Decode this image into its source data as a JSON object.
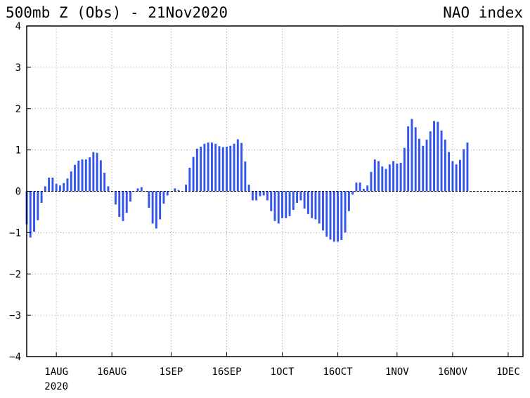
{
  "chart_data": {
    "type": "bar",
    "title": "500mb Z (Obs) - 21Nov2020",
    "subtitle": "NAO index",
    "ylim": [
      -4,
      4
    ],
    "yticks": [
      "4",
      "3",
      "2",
      "1",
      "0",
      "-1",
      "-2",
      "-3",
      "-4"
    ],
    "xlim": [
      "2020-07-24",
      "2020-12-05"
    ],
    "xticks": [
      {
        "date": "2020-08-01",
        "label": "1AUG",
        "sublabel": "2020"
      },
      {
        "date": "2020-08-16",
        "label": "16AUG"
      },
      {
        "date": "2020-09-01",
        "label": "1SEP"
      },
      {
        "date": "2020-09-16",
        "label": "16SEP"
      },
      {
        "date": "2020-10-01",
        "label": "1OCT"
      },
      {
        "date": "2020-10-16",
        "label": "16OCT"
      },
      {
        "date": "2020-11-01",
        "label": "1NOV"
      },
      {
        "date": "2020-11-16",
        "label": "16NOV"
      },
      {
        "date": "2020-12-01",
        "label": "1DEC"
      }
    ],
    "grid": true,
    "bar_color": "#3355ee",
    "x_start": "2020-07-24",
    "values": [
      -0.8,
      -1.12,
      -0.98,
      -0.7,
      -0.28,
      0.12,
      0.33,
      0.33,
      0.18,
      0.14,
      0.2,
      0.31,
      0.48,
      0.64,
      0.74,
      0.77,
      0.77,
      0.82,
      0.95,
      0.93,
      0.75,
      0.45,
      0.12,
      0.0,
      -0.32,
      -0.62,
      -0.72,
      -0.52,
      -0.25,
      0.0,
      0.07,
      0.1,
      0.0,
      -0.4,
      -0.78,
      -0.9,
      -0.68,
      -0.3,
      -0.1,
      0.0,
      0.07,
      0.03,
      0.0,
      0.16,
      0.57,
      0.83,
      1.03,
      1.08,
      1.15,
      1.18,
      1.18,
      1.15,
      1.09,
      1.07,
      1.08,
      1.1,
      1.15,
      1.26,
      1.17,
      0.72,
      0.16,
      -0.22,
      -0.22,
      -0.12,
      -0.1,
      -0.22,
      -0.48,
      -0.72,
      -0.78,
      -0.65,
      -0.65,
      -0.6,
      -0.45,
      -0.28,
      -0.22,
      -0.42,
      -0.55,
      -0.65,
      -0.68,
      -0.78,
      -0.95,
      -1.1,
      -1.17,
      -1.22,
      -1.22,
      -1.18,
      -1.0,
      -0.48,
      -0.08,
      0.21,
      0.21,
      0.06,
      0.14,
      0.47,
      0.77,
      0.73,
      0.6,
      0.54,
      0.65,
      0.73,
      0.67,
      0.69,
      1.05,
      1.57,
      1.75,
      1.55,
      1.27,
      1.1,
      1.25,
      1.45,
      1.7,
      1.68,
      1.47,
      1.25,
      0.95,
      0.73,
      0.65,
      0.76,
      1.02,
      1.18
    ]
  }
}
